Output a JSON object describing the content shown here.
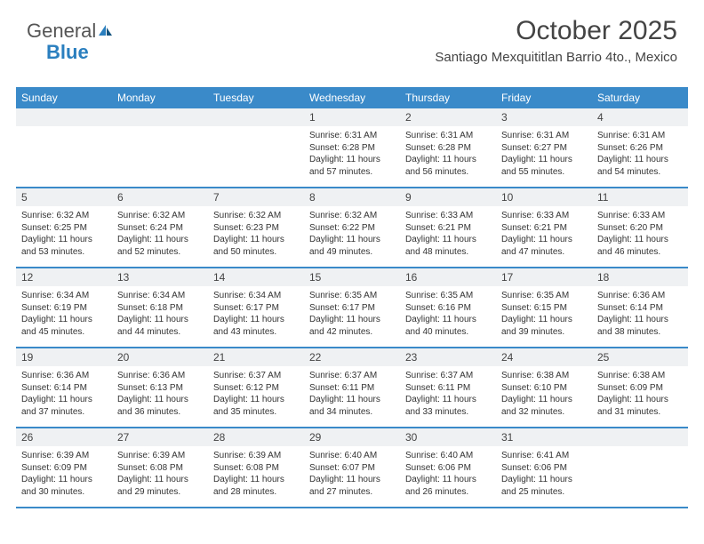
{
  "brand": {
    "general": "General",
    "blue": "Blue",
    "accent_color": "#2a7fbf"
  },
  "title": "October 2025",
  "location": "Santiago Mexquititlan Barrio 4to., Mexico",
  "header_bg": "#3a8ac9",
  "band_bg": "#eff1f3",
  "row_border": "#3a8ac9",
  "days": [
    "Sunday",
    "Monday",
    "Tuesday",
    "Wednesday",
    "Thursday",
    "Friday",
    "Saturday"
  ],
  "weeks": [
    [
      {
        "n": "",
        "sr": "",
        "ss": "",
        "dl": ""
      },
      {
        "n": "",
        "sr": "",
        "ss": "",
        "dl": ""
      },
      {
        "n": "",
        "sr": "",
        "ss": "",
        "dl": ""
      },
      {
        "n": "1",
        "sr": "Sunrise: 6:31 AM",
        "ss": "Sunset: 6:28 PM",
        "dl": "Daylight: 11 hours and 57 minutes."
      },
      {
        "n": "2",
        "sr": "Sunrise: 6:31 AM",
        "ss": "Sunset: 6:28 PM",
        "dl": "Daylight: 11 hours and 56 minutes."
      },
      {
        "n": "3",
        "sr": "Sunrise: 6:31 AM",
        "ss": "Sunset: 6:27 PM",
        "dl": "Daylight: 11 hours and 55 minutes."
      },
      {
        "n": "4",
        "sr": "Sunrise: 6:31 AM",
        "ss": "Sunset: 6:26 PM",
        "dl": "Daylight: 11 hours and 54 minutes."
      }
    ],
    [
      {
        "n": "5",
        "sr": "Sunrise: 6:32 AM",
        "ss": "Sunset: 6:25 PM",
        "dl": "Daylight: 11 hours and 53 minutes."
      },
      {
        "n": "6",
        "sr": "Sunrise: 6:32 AM",
        "ss": "Sunset: 6:24 PM",
        "dl": "Daylight: 11 hours and 52 minutes."
      },
      {
        "n": "7",
        "sr": "Sunrise: 6:32 AM",
        "ss": "Sunset: 6:23 PM",
        "dl": "Daylight: 11 hours and 50 minutes."
      },
      {
        "n": "8",
        "sr": "Sunrise: 6:32 AM",
        "ss": "Sunset: 6:22 PM",
        "dl": "Daylight: 11 hours and 49 minutes."
      },
      {
        "n": "9",
        "sr": "Sunrise: 6:33 AM",
        "ss": "Sunset: 6:21 PM",
        "dl": "Daylight: 11 hours and 48 minutes."
      },
      {
        "n": "10",
        "sr": "Sunrise: 6:33 AM",
        "ss": "Sunset: 6:21 PM",
        "dl": "Daylight: 11 hours and 47 minutes."
      },
      {
        "n": "11",
        "sr": "Sunrise: 6:33 AM",
        "ss": "Sunset: 6:20 PM",
        "dl": "Daylight: 11 hours and 46 minutes."
      }
    ],
    [
      {
        "n": "12",
        "sr": "Sunrise: 6:34 AM",
        "ss": "Sunset: 6:19 PM",
        "dl": "Daylight: 11 hours and 45 minutes."
      },
      {
        "n": "13",
        "sr": "Sunrise: 6:34 AM",
        "ss": "Sunset: 6:18 PM",
        "dl": "Daylight: 11 hours and 44 minutes."
      },
      {
        "n": "14",
        "sr": "Sunrise: 6:34 AM",
        "ss": "Sunset: 6:17 PM",
        "dl": "Daylight: 11 hours and 43 minutes."
      },
      {
        "n": "15",
        "sr": "Sunrise: 6:35 AM",
        "ss": "Sunset: 6:17 PM",
        "dl": "Daylight: 11 hours and 42 minutes."
      },
      {
        "n": "16",
        "sr": "Sunrise: 6:35 AM",
        "ss": "Sunset: 6:16 PM",
        "dl": "Daylight: 11 hours and 40 minutes."
      },
      {
        "n": "17",
        "sr": "Sunrise: 6:35 AM",
        "ss": "Sunset: 6:15 PM",
        "dl": "Daylight: 11 hours and 39 minutes."
      },
      {
        "n": "18",
        "sr": "Sunrise: 6:36 AM",
        "ss": "Sunset: 6:14 PM",
        "dl": "Daylight: 11 hours and 38 minutes."
      }
    ],
    [
      {
        "n": "19",
        "sr": "Sunrise: 6:36 AM",
        "ss": "Sunset: 6:14 PM",
        "dl": "Daylight: 11 hours and 37 minutes."
      },
      {
        "n": "20",
        "sr": "Sunrise: 6:36 AM",
        "ss": "Sunset: 6:13 PM",
        "dl": "Daylight: 11 hours and 36 minutes."
      },
      {
        "n": "21",
        "sr": "Sunrise: 6:37 AM",
        "ss": "Sunset: 6:12 PM",
        "dl": "Daylight: 11 hours and 35 minutes."
      },
      {
        "n": "22",
        "sr": "Sunrise: 6:37 AM",
        "ss": "Sunset: 6:11 PM",
        "dl": "Daylight: 11 hours and 34 minutes."
      },
      {
        "n": "23",
        "sr": "Sunrise: 6:37 AM",
        "ss": "Sunset: 6:11 PM",
        "dl": "Daylight: 11 hours and 33 minutes."
      },
      {
        "n": "24",
        "sr": "Sunrise: 6:38 AM",
        "ss": "Sunset: 6:10 PM",
        "dl": "Daylight: 11 hours and 32 minutes."
      },
      {
        "n": "25",
        "sr": "Sunrise: 6:38 AM",
        "ss": "Sunset: 6:09 PM",
        "dl": "Daylight: 11 hours and 31 minutes."
      }
    ],
    [
      {
        "n": "26",
        "sr": "Sunrise: 6:39 AM",
        "ss": "Sunset: 6:09 PM",
        "dl": "Daylight: 11 hours and 30 minutes."
      },
      {
        "n": "27",
        "sr": "Sunrise: 6:39 AM",
        "ss": "Sunset: 6:08 PM",
        "dl": "Daylight: 11 hours and 29 minutes."
      },
      {
        "n": "28",
        "sr": "Sunrise: 6:39 AM",
        "ss": "Sunset: 6:08 PM",
        "dl": "Daylight: 11 hours and 28 minutes."
      },
      {
        "n": "29",
        "sr": "Sunrise: 6:40 AM",
        "ss": "Sunset: 6:07 PM",
        "dl": "Daylight: 11 hours and 27 minutes."
      },
      {
        "n": "30",
        "sr": "Sunrise: 6:40 AM",
        "ss": "Sunset: 6:06 PM",
        "dl": "Daylight: 11 hours and 26 minutes."
      },
      {
        "n": "31",
        "sr": "Sunrise: 6:41 AM",
        "ss": "Sunset: 6:06 PM",
        "dl": "Daylight: 11 hours and 25 minutes."
      },
      {
        "n": "",
        "sr": "",
        "ss": "",
        "dl": ""
      }
    ]
  ]
}
